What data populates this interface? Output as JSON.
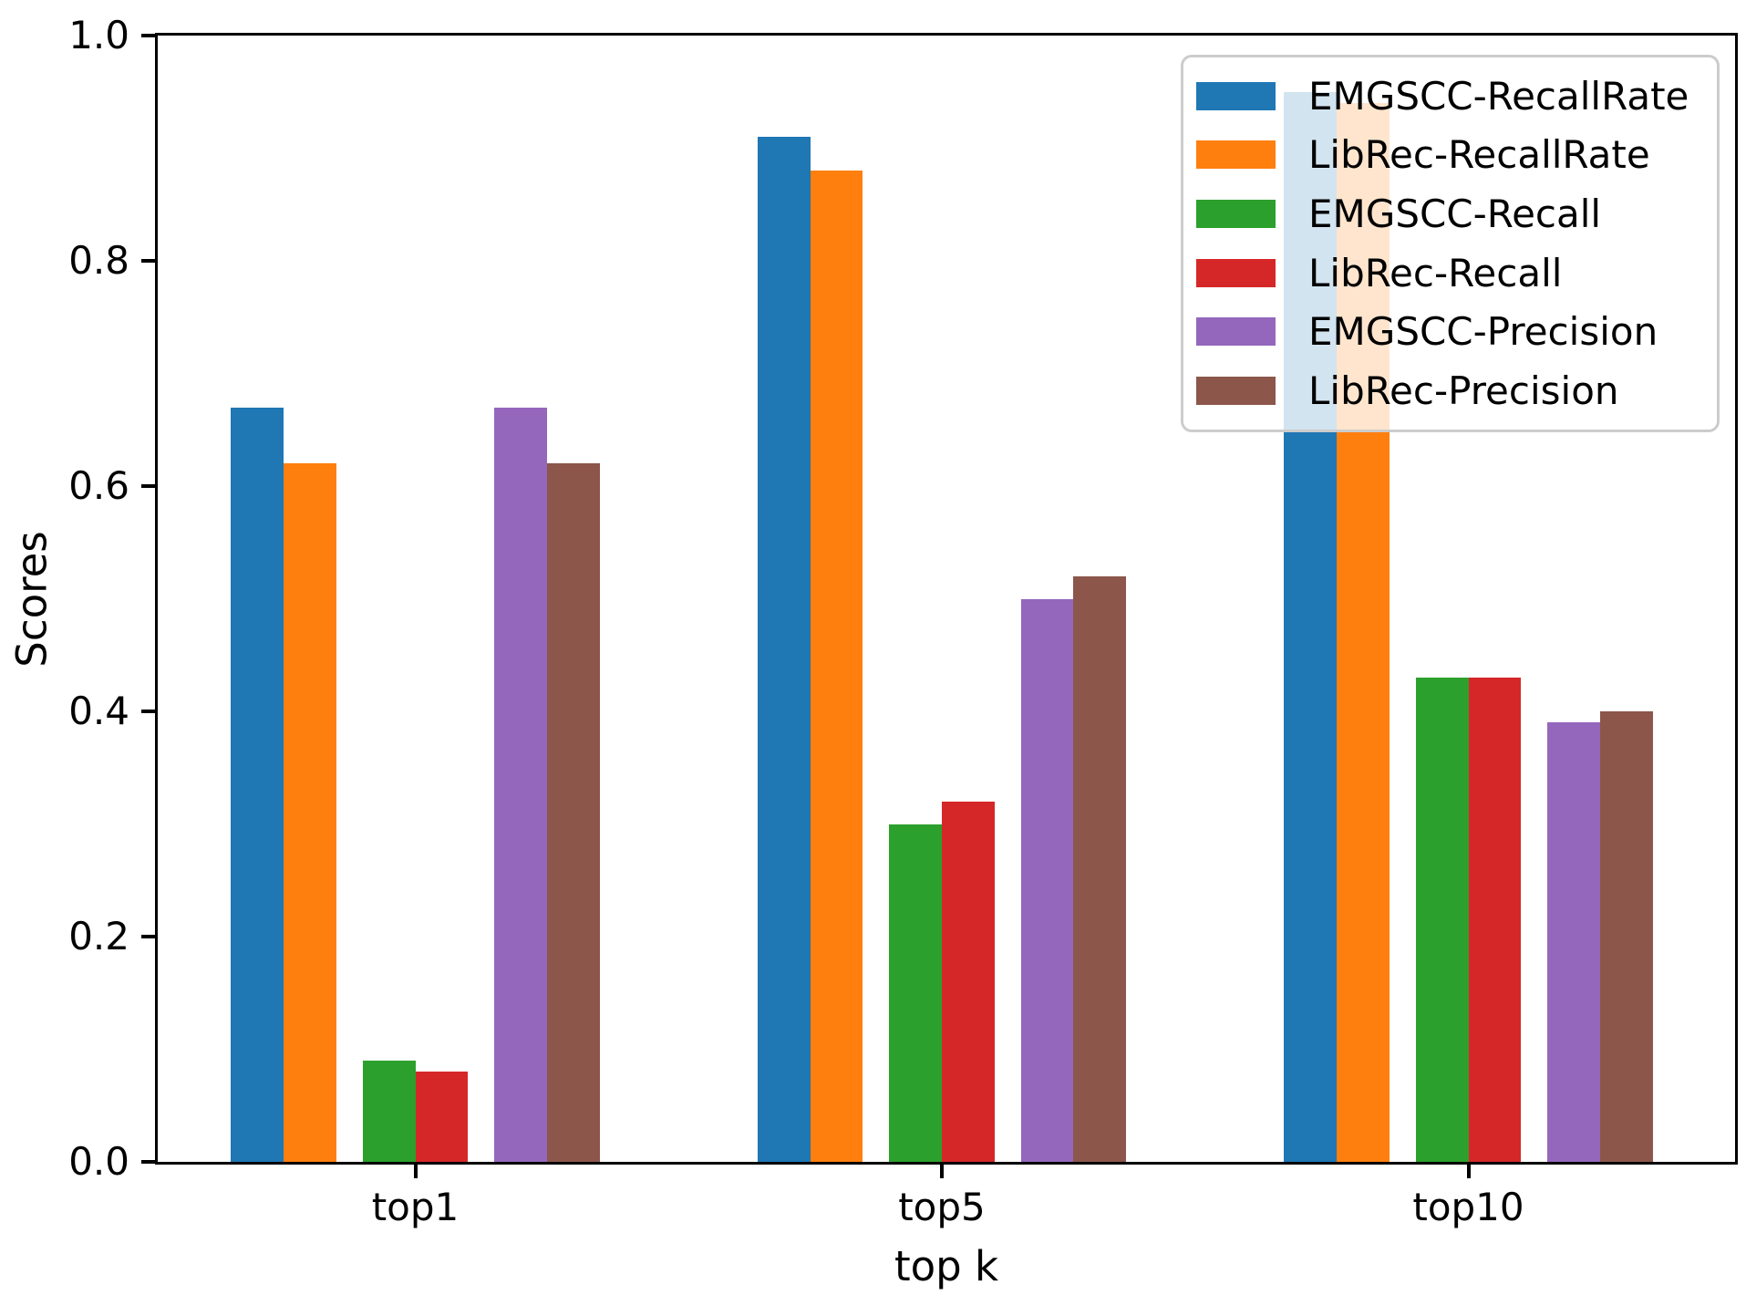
{
  "chart_data": {
    "type": "bar",
    "title": "",
    "xlabel": "top k",
    "ylabel": "Scores",
    "categories": [
      "top1",
      "top5",
      "top10"
    ],
    "series": [
      {
        "name": "EMGSCC-RecallRate",
        "color": "#1f77b4",
        "values": [
          0.67,
          0.91,
          0.95
        ]
      },
      {
        "name": "LibRec-RecallRate",
        "color": "#ff7f0e",
        "values": [
          0.62,
          0.88,
          0.94
        ]
      },
      {
        "name": "EMGSCC-Recall",
        "color": "#2ca02c",
        "values": [
          0.09,
          0.3,
          0.43
        ]
      },
      {
        "name": "LibRec-Recall",
        "color": "#d62728",
        "values": [
          0.08,
          0.32,
          0.43
        ]
      },
      {
        "name": "EMGSCC-Precision",
        "color": "#9467bd",
        "values": [
          0.67,
          0.5,
          0.39
        ]
      },
      {
        "name": "LibRec-Precision",
        "color": "#8c564b",
        "values": [
          0.62,
          0.52,
          0.4
        ]
      }
    ],
    "ylim": [
      0.0,
      1.0
    ],
    "yticks": [
      "0.0",
      "0.2",
      "0.4",
      "0.6",
      "0.8",
      "1.0"
    ],
    "grid": false,
    "legend_position": "upper-right",
    "bar_layout": {
      "bar_width_units": 0.1,
      "offsets_units": [
        -0.3,
        -0.2,
        -0.05,
        0.05,
        0.2,
        0.3
      ]
    },
    "axis_color": "#000000",
    "legend_border_color": "#cccccc"
  }
}
